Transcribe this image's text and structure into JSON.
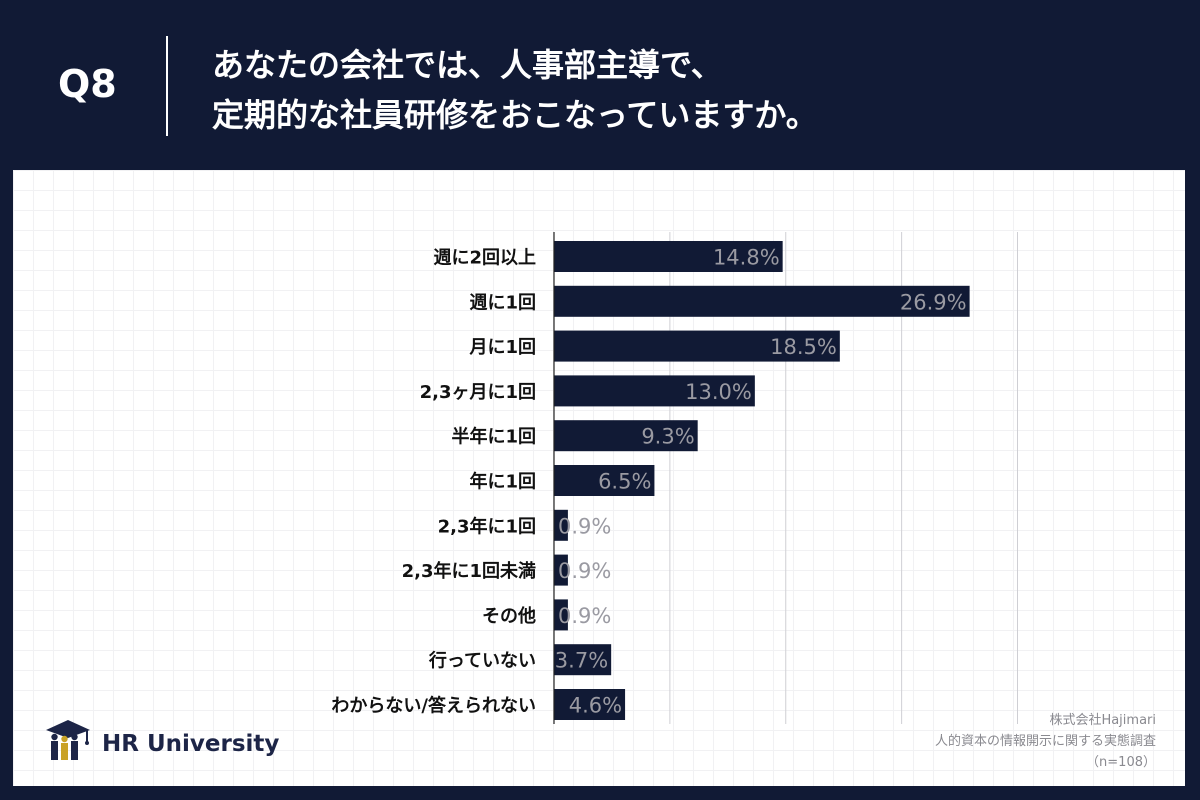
{
  "header": {
    "qnum": "Q8",
    "title_line1": "あなたの会社では、人事部主導で、",
    "title_line2": "定期的な社員研修をおこなっていますか。"
  },
  "chart_data": {
    "type": "bar",
    "orientation": "horizontal",
    "categories": [
      "週に2回以上",
      "週に1回",
      "月に1回",
      "2,3ヶ月に1回",
      "半年に1回",
      "年に1回",
      "2,3年に1回",
      "2,3年に1回未満",
      "その他",
      "行っていない",
      "わからない/答えられない"
    ],
    "values": [
      14.8,
      26.9,
      18.5,
      13.0,
      9.3,
      6.5,
      0.9,
      0.9,
      0.9,
      3.7,
      4.6
    ],
    "value_labels": [
      "14.8%",
      "26.9%",
      "18.5%",
      "13.0%",
      "9.3%",
      "6.5%",
      "0.9%",
      "0.9%",
      "0.9%",
      "3.7%",
      "4.6%"
    ],
    "xlim": [
      0,
      30
    ],
    "gridlines_at": [
      0,
      7.5,
      15,
      22.5,
      30
    ],
    "bar_color": "#111a35",
    "value_label_color": "#9a9aa2"
  },
  "footer": {
    "logo_text": "HR University",
    "source_company": "株式会社Hajimari",
    "source_survey": "人的資本の情報開示に関する実態調査",
    "source_n": "（n=108）"
  },
  "colors": {
    "navy": "#111a35",
    "logo_gold": "#c9a227",
    "logo_navy": "#1d2547"
  }
}
